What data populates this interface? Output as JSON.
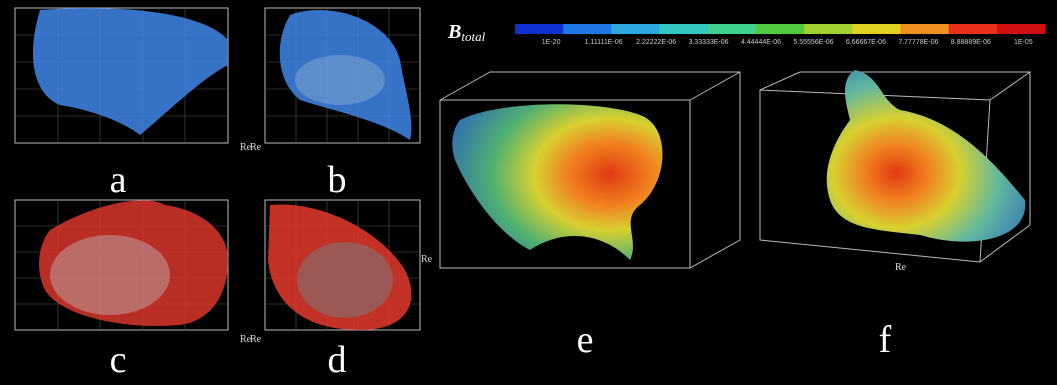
{
  "colorbar": {
    "title": "B",
    "title_sub": "total",
    "labels": [
      "1E-20",
      "1.11111E-06",
      "2.22222E-06",
      "3.33333E-06",
      "4.44444E-06",
      "5.55556E-06",
      "6.66667E-06",
      "7.77778E-06",
      "8.88889E-06",
      "1E-05"
    ]
  },
  "panels": [
    {
      "label": "a",
      "axis_label": "Re"
    },
    {
      "label": "b",
      "axis_label": "Re"
    },
    {
      "label": "c",
      "axis_label": "Re"
    },
    {
      "label": "d",
      "axis_label": "Re"
    },
    {
      "label": "e",
      "axis_label": "Re"
    },
    {
      "label": "f",
      "axis_label": "Re"
    }
  ]
}
